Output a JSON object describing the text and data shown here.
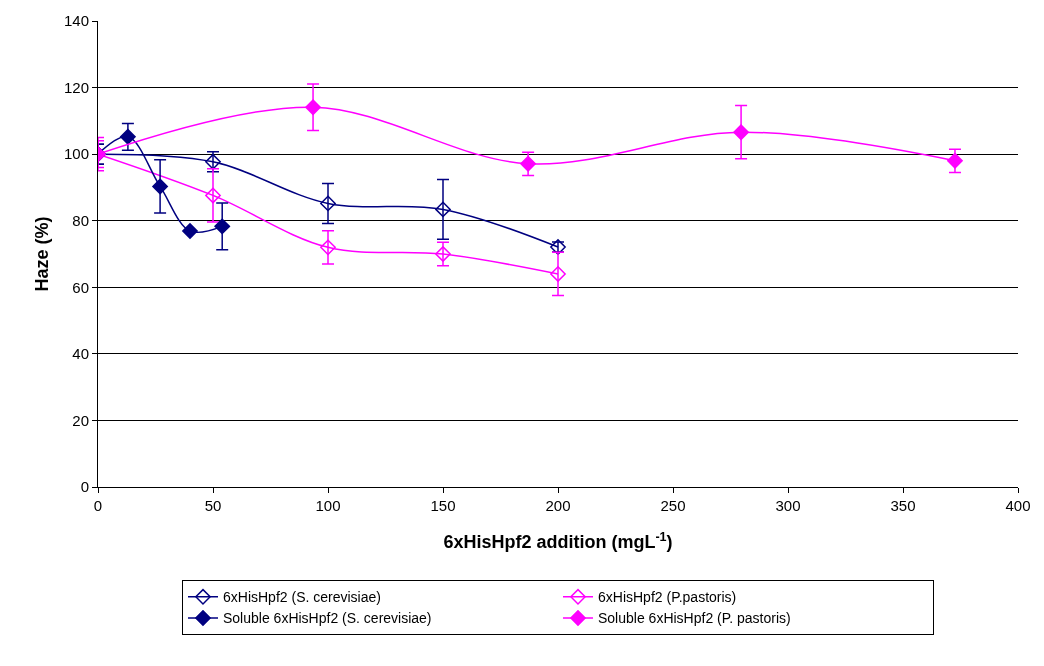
{
  "chart_data": {
    "type": "line",
    "xlabel": "6xHisHpf2 addition (mgL$^{-1}$)",
    "ylabel": "Haze (%)",
    "xlim": [
      0,
      400
    ],
    "xticks": [
      0,
      50,
      100,
      150,
      200,
      250,
      300,
      350,
      400
    ],
    "ylim": [
      0,
      140
    ],
    "yticks": [
      0,
      20,
      40,
      60,
      80,
      100,
      120,
      140
    ],
    "grid": "y",
    "legend": "bottom",
    "marker": "diamond",
    "series": [
      {
        "name": "6xHisHpf2 (S. cerevisiae)",
        "color": "#000080",
        "x": [
          0,
          50,
          100,
          150,
          200
        ],
        "values": [
          100,
          97.7,
          85.2,
          83.4,
          72.1
        ],
        "errors": [
          3,
          3,
          6,
          9,
          1.5
        ]
      },
      {
        "name": "6xHisHpf2 (P.pastoris)",
        "color": "#ff00ff",
        "x": [
          0,
          50,
          100,
          150,
          200
        ],
        "values": [
          100,
          87.6,
          72,
          70,
          64
        ],
        "errors": [
          5,
          8,
          5,
          3.5,
          6.5
        ]
      },
      {
        "name": "Soluble 6xHisHpf2 (S. cerevisiae)",
        "color": "#000080",
        "x": [
          0,
          13,
          27,
          40,
          54
        ],
        "values": [
          100,
          105.2,
          90.3,
          76.9,
          78.3
        ],
        "errors": [
          3,
          4,
          8,
          null,
          7
        ]
      },
      {
        "name": "Soluble 6xHisHpf2 (P. pastoris)",
        "color": "#ff00ff",
        "x": [
          0,
          93.5,
          187,
          279.6,
          372.6
        ],
        "values": [
          100,
          114.1,
          97.1,
          106.6,
          98
        ],
        "errors": [
          4,
          7,
          3.5,
          8,
          3.5
        ]
      }
    ]
  }
}
